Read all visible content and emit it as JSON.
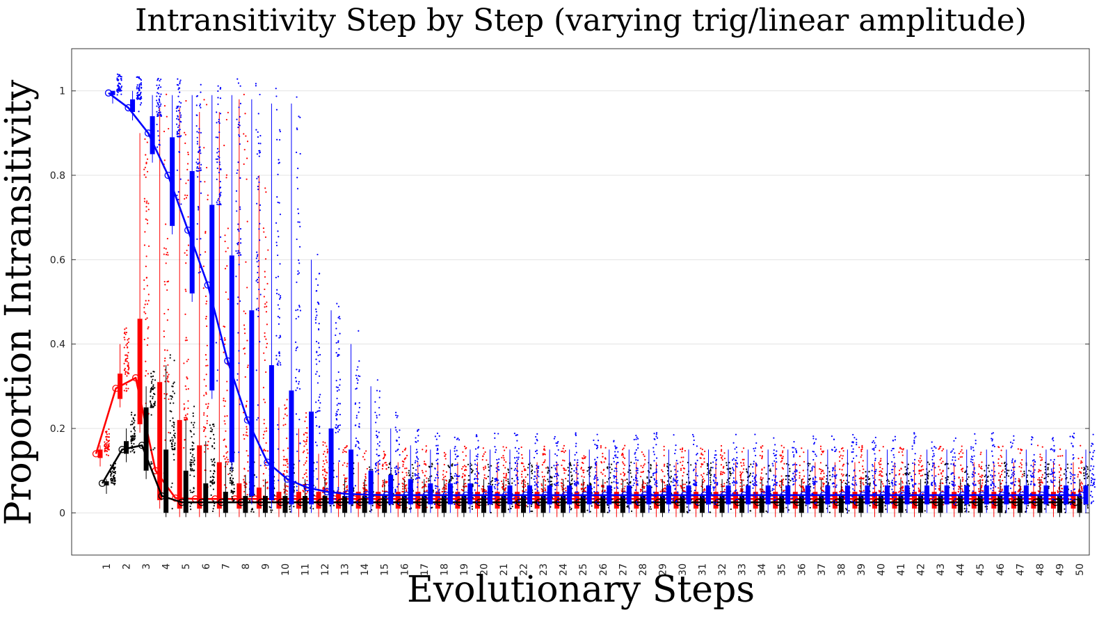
{
  "chart_data": {
    "type": "box",
    "title": "Intransitivity Step by Step (varying trig/linear amplitude)",
    "xlabel": "Evolutionary Steps",
    "ylabel": "Proportion Intransitivity",
    "ylim": [
      -0.1,
      1.1
    ],
    "yticks": [
      0,
      0.2,
      0.4,
      0.6,
      0.8,
      1
    ],
    "ytick_labels": [
      "0",
      "0.2",
      "0.4",
      "0.6",
      "0.8",
      "1"
    ],
    "grid": "horizontal",
    "categories": [
      "1",
      "2",
      "3",
      "4",
      "5",
      "6",
      "7",
      "8",
      "9",
      "10",
      "11",
      "12",
      "13",
      "14",
      "15",
      "16",
      "17",
      "18",
      "19",
      "20",
      "21",
      "22",
      "23",
      "24",
      "25",
      "26",
      "27",
      "28",
      "29",
      "30",
      "31",
      "32",
      "33",
      "34",
      "35",
      "36",
      "37",
      "38",
      "39",
      "40",
      "41",
      "42",
      "43",
      "44",
      "45",
      "46",
      "47",
      "48",
      "49",
      "50"
    ],
    "series": [
      {
        "color": "#ff0000",
        "mean": [
          0.14,
          0.295,
          0.32,
          0.1,
          0.035,
          0.033,
          0.033,
          0.033,
          0.033,
          0.033,
          0.033,
          0.033,
          0.033,
          0.033,
          0.033,
          0.033,
          0.033,
          0.033,
          0.033,
          0.033,
          0.033,
          0.033,
          0.033,
          0.033,
          0.033,
          0.033,
          0.033,
          0.033,
          0.033,
          0.033,
          0.033,
          0.033,
          0.033,
          0.033,
          0.033,
          0.033,
          0.033,
          0.033,
          0.033,
          0.033,
          0.033,
          0.033,
          0.033,
          0.033,
          0.033,
          0.033,
          0.033,
          0.033,
          0.033,
          0.033
        ],
        "q1": [
          0.13,
          0.27,
          0.21,
          0.03,
          0.01,
          0.01,
          0.01,
          0.01,
          0.01,
          0.01,
          0.01,
          0.01,
          0.01,
          0.01,
          0.01,
          0.01,
          0.01,
          0.01,
          0.01,
          0.01,
          0.01,
          0.01,
          0.01,
          0.01,
          0.01,
          0.01,
          0.01,
          0.01,
          0.01,
          0.01,
          0.01,
          0.01,
          0.01,
          0.01,
          0.01,
          0.01,
          0.01,
          0.01,
          0.01,
          0.01,
          0.01,
          0.01,
          0.01,
          0.01,
          0.01,
          0.01,
          0.01,
          0.01,
          0.01,
          0.01
        ],
        "q3": [
          0.15,
          0.33,
          0.46,
          0.31,
          0.22,
          0.16,
          0.12,
          0.07,
          0.06,
          0.05,
          0.05,
          0.05,
          0.05,
          0.05,
          0.05,
          0.05,
          0.05,
          0.05,
          0.05,
          0.05,
          0.05,
          0.05,
          0.05,
          0.05,
          0.05,
          0.05,
          0.05,
          0.05,
          0.05,
          0.05,
          0.05,
          0.05,
          0.05,
          0.05,
          0.05,
          0.05,
          0.05,
          0.05,
          0.05,
          0.05,
          0.05,
          0.05,
          0.05,
          0.05,
          0.05,
          0.05,
          0.05,
          0.05,
          0.05,
          0.05
        ],
        "whisker_high": [
          0.16,
          0.4,
          0.9,
          0.96,
          0.96,
          0.95,
          0.95,
          0.98,
          0.8,
          0.25,
          0.2,
          0.14,
          0.12,
          0.12,
          0.12,
          0.12,
          0.12,
          0.12,
          0.12,
          0.12,
          0.12,
          0.12,
          0.12,
          0.12,
          0.12,
          0.12,
          0.12,
          0.12,
          0.12,
          0.12,
          0.12,
          0.12,
          0.12,
          0.12,
          0.12,
          0.12,
          0.12,
          0.12,
          0.12,
          0.12,
          0.12,
          0.12,
          0.12,
          0.12,
          0.12,
          0.12,
          0.12,
          0.12,
          0.12,
          0.12
        ]
      },
      {
        "color": "#000000",
        "mean": [
          0.07,
          0.15,
          0.16,
          0.04,
          0.025,
          0.025,
          0.025,
          0.025,
          0.025,
          0.025,
          0.025,
          0.025,
          0.025,
          0.025,
          0.025,
          0.025,
          0.025,
          0.025,
          0.025,
          0.025,
          0.025,
          0.025,
          0.025,
          0.025,
          0.025,
          0.025,
          0.025,
          0.025,
          0.025,
          0.025,
          0.025,
          0.025,
          0.025,
          0.025,
          0.025,
          0.025,
          0.025,
          0.025,
          0.025,
          0.025,
          0.025,
          0.025,
          0.025,
          0.025,
          0.025,
          0.025,
          0.025,
          0.025,
          0.025,
          0.025
        ],
        "q1": [
          0.065,
          0.14,
          0.1,
          0.0,
          0.0,
          0.0,
          0.0,
          0.0,
          0.0,
          0.0,
          0.0,
          0.0,
          0.0,
          0.0,
          0.0,
          0.0,
          0.0,
          0.0,
          0.0,
          0.0,
          0.0,
          0.0,
          0.0,
          0.0,
          0.0,
          0.0,
          0.0,
          0.0,
          0.0,
          0.0,
          0.0,
          0.0,
          0.0,
          0.0,
          0.0,
          0.0,
          0.0,
          0.0,
          0.0,
          0.0,
          0.0,
          0.0,
          0.0,
          0.0,
          0.0,
          0.0,
          0.0,
          0.0,
          0.0,
          0.0
        ],
        "q3": [
          0.075,
          0.17,
          0.25,
          0.15,
          0.1,
          0.07,
          0.05,
          0.04,
          0.04,
          0.04,
          0.04,
          0.04,
          0.04,
          0.04,
          0.04,
          0.04,
          0.04,
          0.04,
          0.04,
          0.04,
          0.04,
          0.04,
          0.04,
          0.04,
          0.04,
          0.04,
          0.04,
          0.04,
          0.04,
          0.04,
          0.04,
          0.04,
          0.04,
          0.04,
          0.04,
          0.04,
          0.04,
          0.04,
          0.04,
          0.04,
          0.04,
          0.04,
          0.04,
          0.04,
          0.04,
          0.04,
          0.04,
          0.04,
          0.04,
          0.04
        ],
        "whisker_high": [
          0.08,
          0.2,
          0.3,
          0.35,
          0.22,
          0.17,
          0.12,
          0.09,
          0.08,
          0.08,
          0.08,
          0.08,
          0.08,
          0.08,
          0.08,
          0.08,
          0.08,
          0.08,
          0.08,
          0.08,
          0.08,
          0.08,
          0.08,
          0.08,
          0.08,
          0.08,
          0.08,
          0.08,
          0.08,
          0.08,
          0.08,
          0.08,
          0.08,
          0.08,
          0.08,
          0.08,
          0.08,
          0.08,
          0.08,
          0.08,
          0.08,
          0.08,
          0.08,
          0.08,
          0.08,
          0.08,
          0.08,
          0.08,
          0.08,
          0.08
        ]
      },
      {
        "color": "#0000ff",
        "mean": [
          0.995,
          0.96,
          0.9,
          0.8,
          0.67,
          0.54,
          0.36,
          0.22,
          0.12,
          0.08,
          0.06,
          0.05,
          0.045,
          0.043,
          0.042,
          0.042,
          0.042,
          0.042,
          0.042,
          0.042,
          0.042,
          0.042,
          0.042,
          0.042,
          0.042,
          0.042,
          0.042,
          0.042,
          0.042,
          0.042,
          0.042,
          0.042,
          0.042,
          0.042,
          0.042,
          0.042,
          0.042,
          0.042,
          0.042,
          0.042,
          0.042,
          0.042,
          0.042,
          0.042,
          0.042,
          0.042,
          0.042,
          0.042,
          0.042,
          0.042
        ],
        "q1": [
          0.99,
          0.95,
          0.85,
          0.68,
          0.52,
          0.29,
          0.12,
          0.04,
          0.03,
          0.02,
          0.02,
          0.02,
          0.02,
          0.02,
          0.02,
          0.02,
          0.02,
          0.02,
          0.02,
          0.02,
          0.02,
          0.02,
          0.02,
          0.02,
          0.02,
          0.02,
          0.02,
          0.02,
          0.02,
          0.02,
          0.02,
          0.02,
          0.02,
          0.02,
          0.02,
          0.02,
          0.02,
          0.02,
          0.02,
          0.02,
          0.02,
          0.02,
          0.02,
          0.02,
          0.02,
          0.02,
          0.02,
          0.02,
          0.02,
          0.02
        ],
        "q3": [
          1.0,
          0.98,
          0.94,
          0.89,
          0.81,
          0.73,
          0.61,
          0.48,
          0.35,
          0.29,
          0.24,
          0.2,
          0.15,
          0.1,
          0.09,
          0.08,
          0.07,
          0.07,
          0.07,
          0.065,
          0.065,
          0.065,
          0.065,
          0.065,
          0.065,
          0.065,
          0.065,
          0.065,
          0.065,
          0.065,
          0.065,
          0.065,
          0.065,
          0.065,
          0.065,
          0.065,
          0.065,
          0.065,
          0.065,
          0.065,
          0.065,
          0.065,
          0.065,
          0.065,
          0.065,
          0.065,
          0.065,
          0.065,
          0.065,
          0.065
        ],
        "whisker_high": [
          1.0,
          1.0,
          0.99,
          0.99,
          0.99,
          0.99,
          0.99,
          0.98,
          0.97,
          0.97,
          0.6,
          0.48,
          0.4,
          0.3,
          0.2,
          0.16,
          0.15,
          0.15,
          0.15,
          0.15,
          0.15,
          0.15,
          0.15,
          0.15,
          0.15,
          0.15,
          0.15,
          0.15,
          0.15,
          0.15,
          0.15,
          0.15,
          0.15,
          0.15,
          0.15,
          0.15,
          0.15,
          0.15,
          0.15,
          0.15,
          0.15,
          0.15,
          0.15,
          0.15,
          0.15,
          0.15,
          0.15,
          0.15,
          0.15,
          0.15
        ]
      }
    ]
  }
}
